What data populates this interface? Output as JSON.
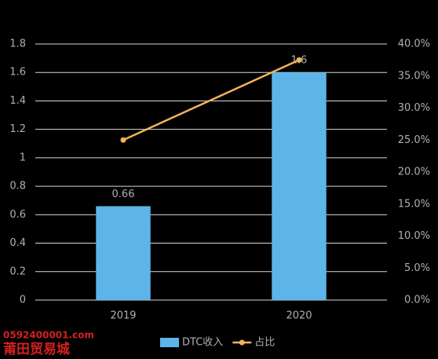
{
  "chart_data": {
    "type": "bar-line",
    "categories": [
      "2019",
      "2020"
    ],
    "series": [
      {
        "name": "DTC收入",
        "type": "bar",
        "color": "#5db4e8",
        "values": [
          0.66,
          1.6
        ]
      },
      {
        "name": "占比",
        "type": "line",
        "axis": "y2",
        "color": "#f5b25a",
        "values": [
          25,
          37.5
        ]
      }
    ],
    "ylim": [
      0,
      1.8
    ],
    "yticks": [
      0,
      0.2,
      0.4,
      0.6,
      0.8,
      1,
      1.2,
      1.4,
      1.6,
      1.8
    ],
    "y2lim": [
      0,
      40
    ],
    "y2ticks": [
      {
        "value": 0,
        "label": "0.0%"
      },
      {
        "value": 5,
        "label": "5.0%"
      },
      {
        "value": 10,
        "label": "10.0%"
      },
      {
        "value": 15,
        "label": "15.0%"
      },
      {
        "value": 20,
        "label": "20.0%"
      },
      {
        "value": 25,
        "label": "25.0%"
      },
      {
        "value": 30,
        "label": "30.0%"
      },
      {
        "value": 35,
        "label": "35.0%"
      },
      {
        "value": 40,
        "label": "40.0%"
      }
    ],
    "grid": true,
    "legend": "bottom",
    "watermark": [
      "0592400001.com",
      "莆田贸易城"
    ]
  }
}
